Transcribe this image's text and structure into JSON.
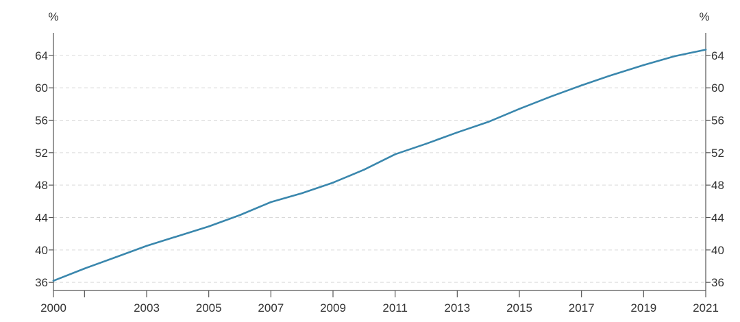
{
  "chart_data": {
    "type": "line",
    "title": "",
    "xlabel": "",
    "ylabel": "",
    "y_unit_left": "%",
    "y_unit_right": "%",
    "xlim": [
      2000,
      2021
    ],
    "ylim": [
      35,
      66
    ],
    "y_ticks": [
      36,
      40,
      44,
      48,
      52,
      56,
      60,
      64
    ],
    "x_tick_marks": [
      2000,
      2001,
      2003,
      2005,
      2007,
      2009,
      2011,
      2013,
      2015,
      2017,
      2019,
      2021
    ],
    "x_tick_labels": [
      "2000",
      "2003",
      "2005",
      "2007",
      "2009",
      "2011",
      "2013",
      "2015",
      "2017",
      "2019",
      "2021"
    ],
    "grid": true,
    "line_color": "#3a87ad",
    "series": [
      {
        "x": [
          2000,
          2001,
          2002,
          2003,
          2004,
          2005,
          2006,
          2007,
          2008,
          2009,
          2010,
          2011,
          2012,
          2013,
          2014,
          2015,
          2016,
          2017,
          2018,
          2019,
          2020,
          2021
        ],
        "values": [
          36.2,
          37.7,
          39.1,
          40.5,
          41.7,
          42.9,
          44.3,
          45.9,
          47.0,
          48.3,
          49.9,
          51.8,
          53.1,
          54.5,
          55.8,
          57.4,
          58.9,
          60.3,
          61.6,
          62.8,
          63.9,
          64.7
        ]
      }
    ]
  }
}
